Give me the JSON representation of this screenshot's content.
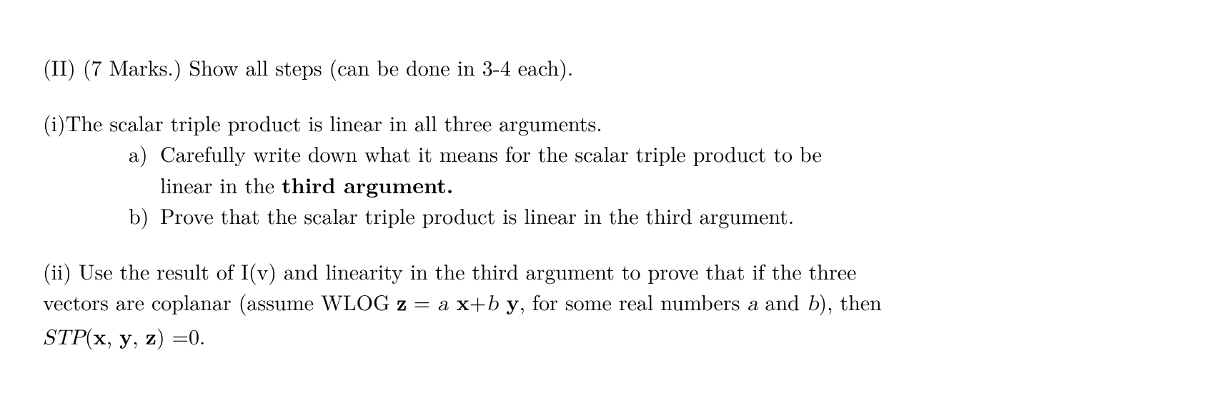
{
  "header": {
    "label": "(II) (7 Marks.) Show all steps (can be done in 3-4 each)."
  },
  "part_i": {
    "intro_marker": "(i)",
    "intro_text": "The scalar triple product is linear in all three arguments.",
    "a": {
      "marker": "a)",
      "line1": "Carefully write down what it means for the scalar triple product to be",
      "line2_pre": "linear in the ",
      "line2_bold": "third argument."
    },
    "b": {
      "marker": "b)",
      "text": "Prove that the scalar triple product is linear in the third argument."
    }
  },
  "part_ii": {
    "line1": "(ii) Use the result of I(v) and linearity in the third argument to prove that if the three",
    "line2_pre": "vectors are coplanar (assume WLOG ",
    "eq_z": "z",
    "eq_eq": " = ",
    "eq_a": "a",
    "eq_x": " x",
    "eq_plus": "+",
    "eq_b": "b",
    "eq_y": " y",
    "line2_post": ", for some real numbers ",
    "var_a": "a",
    "and": " and ",
    "var_b": "b",
    "line2_end": "), then",
    "stp_S": "S",
    "stp_T": "T",
    "stp_P": "P",
    "stp_open": "(",
    "stp_x": "x",
    "stp_c1": ", ",
    "stp_y": "y",
    "stp_c2": ", ",
    "stp_z": "z",
    "stp_close": ") ",
    "stp_eq": "=",
    "stp_zero": "0."
  }
}
